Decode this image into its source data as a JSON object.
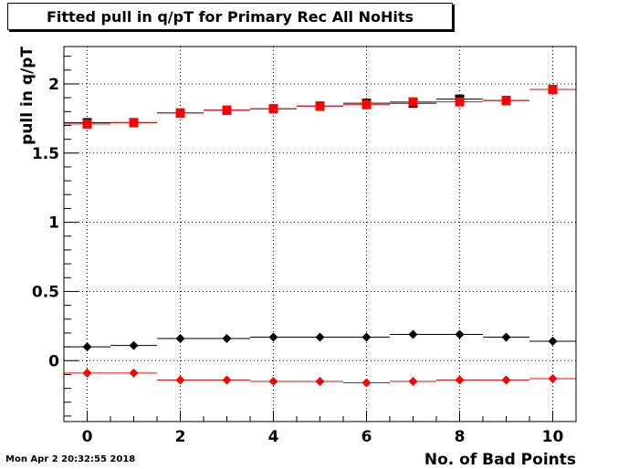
{
  "chart_data": {
    "type": "scatter",
    "title": "Fitted pull in q/pT for Primary Rec All NoHits",
    "xlabel": "No. of Bad Points",
    "ylabel": "pull in q/pT",
    "xlim": [
      -0.5,
      10.5
    ],
    "ylim": [
      -0.44,
      2.27
    ],
    "xticks": [
      0,
      2,
      4,
      6,
      8,
      10
    ],
    "yticks": [
      0,
      0.5,
      1,
      1.5,
      2
    ],
    "ytick_labels": [
      "0",
      "0.5",
      "1",
      "1.5",
      "2"
    ],
    "grid": true,
    "series": [
      {
        "marker": "square",
        "color": "#000000",
        "x": [
          0,
          1,
          2,
          3,
          4,
          5,
          6,
          7,
          8,
          9,
          10
        ],
        "y": [
          1.72,
          1.72,
          1.79,
          1.81,
          1.82,
          1.84,
          1.86,
          1.86,
          1.89,
          1.88,
          1.96
        ]
      },
      {
        "marker": "square",
        "color": "#ff0000",
        "x": [
          0,
          1,
          2,
          3,
          4,
          5,
          6,
          7,
          8,
          9,
          10
        ],
        "y": [
          1.71,
          1.72,
          1.79,
          1.81,
          1.82,
          1.84,
          1.85,
          1.87,
          1.87,
          1.88,
          1.96
        ]
      },
      {
        "marker": "diamond",
        "color": "#000000",
        "x": [
          0,
          1,
          2,
          3,
          4,
          5,
          6,
          7,
          8,
          9,
          10
        ],
        "y": [
          0.1,
          0.11,
          0.16,
          0.16,
          0.17,
          0.17,
          0.17,
          0.19,
          0.19,
          0.17,
          0.14
        ]
      },
      {
        "marker": "diamond",
        "color": "#ff0000",
        "x": [
          0,
          1,
          2,
          3,
          4,
          5,
          6,
          7,
          8,
          9,
          10
        ],
        "y": [
          -0.09,
          -0.09,
          -0.14,
          -0.14,
          -0.15,
          -0.15,
          -0.16,
          -0.15,
          -0.14,
          -0.14,
          -0.13
        ]
      }
    ]
  },
  "timestamp": "Mon Apr  2 20:32:55 2018"
}
